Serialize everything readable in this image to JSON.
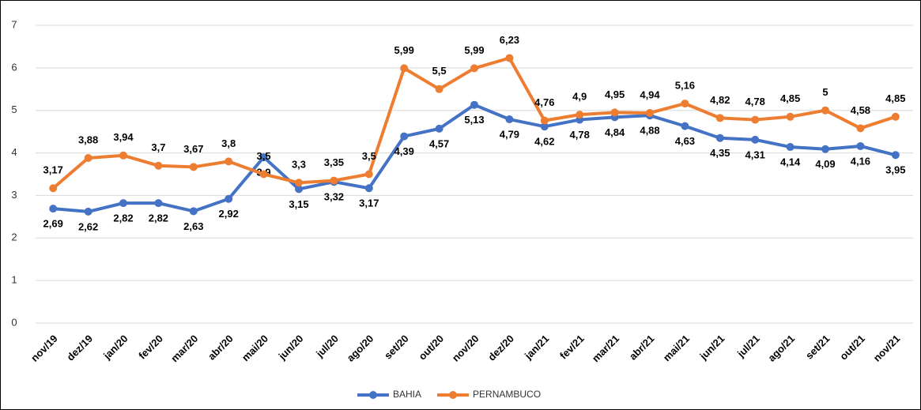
{
  "chart_data": {
    "type": "line",
    "categories": [
      "nov/19",
      "dez/19",
      "jan/20",
      "fev/20",
      "mar/20",
      "abr/20",
      "mai/20",
      "jun/20",
      "jul/20",
      "ago/20",
      "set/20",
      "out/20",
      "nov/20",
      "dez/20",
      "jan/21",
      "fev/21",
      "mar/21",
      "abr/21",
      "mai/21",
      "jun/21",
      "jul/21",
      "ago/21",
      "set/21",
      "out/21",
      "nov/21"
    ],
    "series": [
      {
        "name": "BAHIA",
        "color": "#4472c4",
        "values": [
          2.69,
          2.62,
          2.82,
          2.82,
          2.63,
          2.92,
          3.9,
          3.15,
          3.32,
          3.17,
          4.39,
          4.57,
          5.13,
          4.79,
          4.62,
          4.78,
          4.84,
          4.88,
          4.63,
          4.35,
          4.31,
          4.14,
          4.09,
          4.16,
          3.95
        ],
        "value_labels": [
          "2,69",
          "2,62",
          "2,82",
          "2,82",
          "2,63",
          "2,92",
          "3,9",
          "3,15",
          "3,32",
          "3,17",
          "4,39",
          "4,57",
          "5,13",
          "4,79",
          "4,62",
          "4,78",
          "4,84",
          "4,88",
          "4,63",
          "4,35",
          "4,31",
          "4,14",
          "4,09",
          "4,16",
          "3,95"
        ]
      },
      {
        "name": "PERNAMBUCO",
        "color": "#ed7d31",
        "values": [
          3.17,
          3.88,
          3.94,
          3.7,
          3.67,
          3.8,
          3.5,
          3.3,
          3.35,
          3.5,
          5.99,
          5.5,
          5.99,
          6.23,
          4.76,
          4.9,
          4.95,
          4.94,
          5.16,
          4.82,
          4.78,
          4.85,
          5,
          4.58,
          4.85
        ],
        "value_labels": [
          "3,17",
          "3,88",
          "3,94",
          "3,7",
          "3,67",
          "3,8",
          "3,5",
          "3,3",
          "3,35",
          "3,5",
          "5,99",
          "5,5",
          "5,99",
          "6,23",
          "4,76",
          "4,9",
          "4,95",
          "4,94",
          "5,16",
          "4,82",
          "4,78",
          "4,85",
          "5",
          "4,58",
          "4,85"
        ]
      }
    ],
    "ylim": [
      0,
      7
    ],
    "yticks": [
      0,
      1,
      2,
      3,
      4,
      5,
      6,
      7
    ],
    "grid": true,
    "legend": "bottom"
  }
}
